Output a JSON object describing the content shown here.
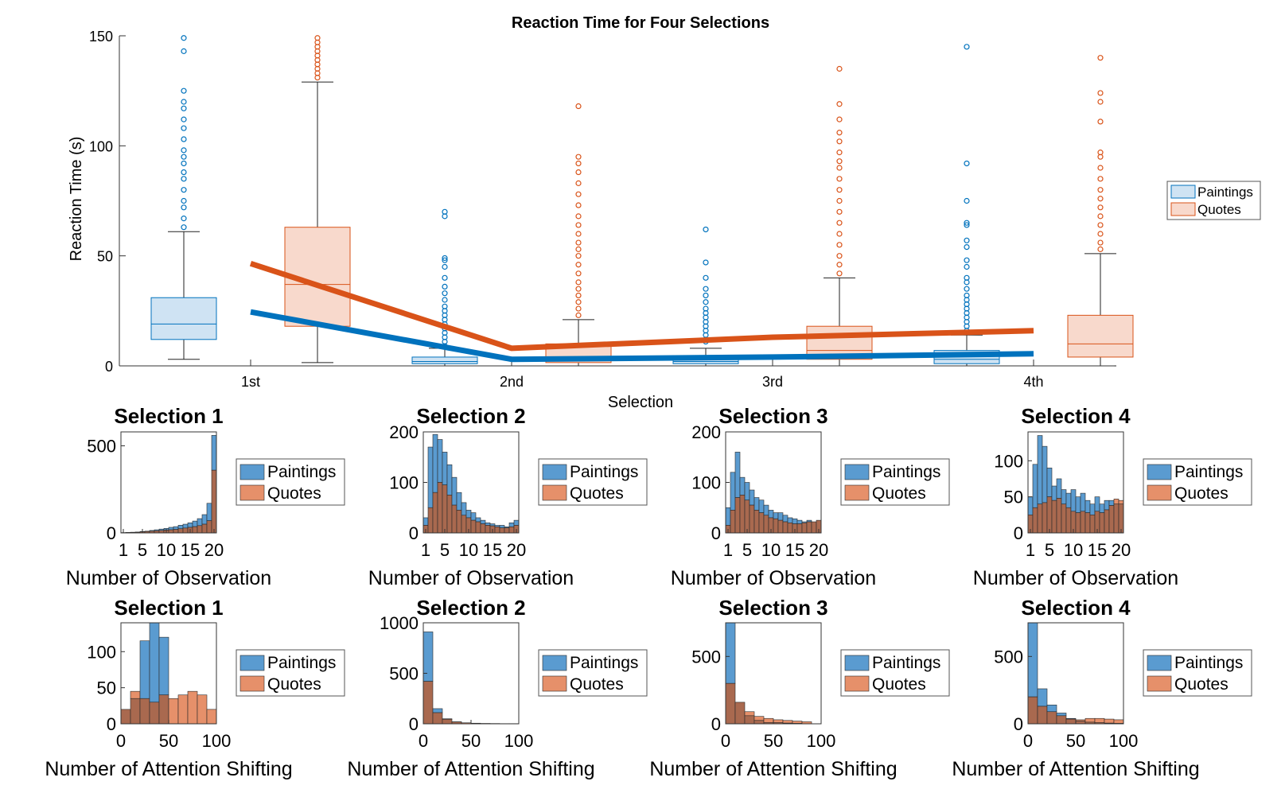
{
  "colors": {
    "paintings_fill": "#cfe3f3",
    "paintings_edge": "#0072bd",
    "quotes_fill": "#f8d9cc",
    "quotes_edge": "#d95319",
    "hist_paintings": "#5a9bd0",
    "hist_quotes": "#e6906a",
    "hist_overlap": "#a9694f",
    "hist_edge": "#2a2a2a"
  },
  "chart_data": [
    {
      "type": "box",
      "title": "Reaction Time for Four Selections",
      "xlabel": "Selection",
      "ylabel": "Reaction Time (s)",
      "categories": [
        "1st",
        "2nd",
        "3rd",
        "4th"
      ],
      "ylim": [
        0,
        150
      ],
      "yticks": [
        "0",
        "50",
        "100",
        "150"
      ],
      "legend": {
        "placement": "right",
        "entries": [
          "Paintings",
          "Quotes"
        ]
      },
      "series": [
        {
          "name": "Paintings",
          "boxes": [
            {
              "whisker_low": 3,
              "q1": 12,
              "median": 19,
              "q3": 31,
              "whisker_high": 61,
              "outliers": [
                63,
                67,
                72,
                75,
                80,
                85,
                88,
                92,
                95,
                98,
                103,
                108,
                112,
                117,
                120,
                125,
                143,
                149
              ]
            },
            {
              "whisker_low": 0,
              "q1": 1,
              "median": 2,
              "q3": 4,
              "whisker_high": 8,
              "outliers": [
                9,
                11,
                13,
                15,
                17,
                19,
                21,
                23,
                25,
                27,
                30,
                33,
                36,
                40,
                45,
                48,
                49,
                68,
                70
              ]
            },
            {
              "whisker_low": 0,
              "q1": 1,
              "median": 2,
              "q3": 4,
              "whisker_high": 8,
              "outliers": [
                11,
                12,
                14,
                16,
                18,
                20,
                22,
                24,
                26,
                29,
                32,
                35,
                40,
                47,
                62
              ]
            },
            {
              "whisker_low": 0,
              "q1": 1,
              "median": 3,
              "q3": 7,
              "whisker_high": 14,
              "outliers": [
                16,
                18,
                20,
                22,
                24,
                26,
                28,
                30,
                32,
                35,
                38,
                40,
                45,
                48,
                54,
                57,
                64,
                65,
                75,
                92,
                145
              ]
            }
          ],
          "mean_line": [
            24.5,
            3,
            4,
            5.5
          ]
        },
        {
          "name": "Quotes",
          "boxes": [
            {
              "whisker_low": 1.5,
              "q1": 18,
              "median": 37,
              "q3": 63,
              "whisker_high": 129,
              "outliers": [
                131,
                133,
                135,
                137,
                139,
                141,
                143,
                145,
                147,
                149
              ]
            },
            {
              "whisker_low": 0,
              "q1": 1.5,
              "median": 4,
              "q3": 10,
              "whisker_high": 21,
              "outliers": [
                23,
                26,
                29,
                32,
                35,
                38,
                42,
                46,
                50,
                53,
                56,
                60,
                64,
                68,
                73,
                78,
                83,
                88,
                92,
                95,
                118
              ]
            },
            {
              "whisker_low": 0,
              "q1": 3,
              "median": 7,
              "q3": 18,
              "whisker_high": 40,
              "outliers": [
                42,
                46,
                50,
                55,
                60,
                65,
                70,
                75,
                80,
                85,
                90,
                93,
                97,
                102,
                106,
                112,
                119,
                135
              ]
            },
            {
              "whisker_low": 0,
              "q1": 4,
              "median": 10,
              "q3": 23,
              "whisker_high": 51,
              "outliers": [
                53,
                56,
                60,
                64,
                68,
                72,
                76,
                80,
                85,
                90,
                95,
                97,
                111,
                120,
                124,
                140
              ]
            }
          ],
          "mean_line": [
            46.5,
            8,
            13,
            16
          ]
        }
      ]
    },
    {
      "type": "histogram",
      "title": "Selection 1",
      "xlabel": "Number of Observation",
      "xticks": [
        "1",
        "5",
        "10",
        "15",
        "20"
      ],
      "xlim": [
        0.5,
        20.5
      ],
      "ylim": [
        0,
        580
      ],
      "yticks": [
        "0",
        "500"
      ],
      "legend": {
        "placement": "right",
        "entries": [
          "Paintings",
          "Quotes"
        ]
      },
      "bins": [
        1,
        2,
        3,
        4,
        5,
        6,
        7,
        8,
        9,
        10,
        11,
        12,
        13,
        14,
        15,
        16,
        17,
        18,
        19,
        20
      ],
      "series": [
        {
          "name": "Paintings",
          "values": [
            2,
            3,
            4,
            5,
            8,
            10,
            14,
            18,
            22,
            26,
            32,
            36,
            44,
            50,
            58,
            68,
            82,
            105,
            170,
            560
          ]
        },
        {
          "name": "Quotes",
          "values": [
            1,
            2,
            3,
            4,
            6,
            8,
            10,
            12,
            14,
            16,
            18,
            20,
            24,
            28,
            32,
            36,
            42,
            50,
            70,
            360
          ]
        }
      ]
    },
    {
      "type": "histogram",
      "title": "Selection 2",
      "xlabel": "Number of Observation",
      "xticks": [
        "1",
        "5",
        "10",
        "15",
        "20"
      ],
      "xlim": [
        0.5,
        20.5
      ],
      "ylim": [
        0,
        200
      ],
      "yticks": [
        "0",
        "100",
        "200"
      ],
      "legend": {
        "placement": "right",
        "entries": [
          "Paintings",
          "Quotes"
        ]
      },
      "bins": [
        1,
        2,
        3,
        4,
        5,
        6,
        7,
        8,
        9,
        10,
        11,
        12,
        13,
        14,
        15,
        16,
        17,
        18,
        19,
        20
      ],
      "series": [
        {
          "name": "Paintings",
          "values": [
            30,
            170,
            195,
            185,
            160,
            135,
            110,
            80,
            60,
            45,
            40,
            30,
            25,
            20,
            18,
            15,
            15,
            12,
            20,
            25
          ]
        },
        {
          "name": "Quotes",
          "values": [
            15,
            50,
            80,
            100,
            95,
            75,
            55,
            45,
            35,
            30,
            25,
            22,
            18,
            15,
            14,
            12,
            10,
            10,
            12,
            15
          ]
        }
      ]
    },
    {
      "type": "histogram",
      "title": "Selection 3",
      "xlabel": "Number of Observation",
      "xticks": [
        "1",
        "5",
        "10",
        "15",
        "20"
      ],
      "xlim": [
        0.5,
        20.5
      ],
      "ylim": [
        0,
        200
      ],
      "yticks": [
        "0",
        "100",
        "200"
      ],
      "legend": {
        "placement": "right",
        "entries": [
          "Paintings",
          "Quotes"
        ]
      },
      "bins": [
        1,
        2,
        3,
        4,
        5,
        6,
        7,
        8,
        9,
        10,
        11,
        12,
        13,
        14,
        15,
        16,
        17,
        18,
        19,
        20
      ],
      "series": [
        {
          "name": "Paintings",
          "values": [
            50,
            120,
            160,
            110,
            100,
            85,
            70,
            65,
            55,
            45,
            40,
            40,
            35,
            30,
            28,
            25,
            22,
            25,
            22,
            25
          ]
        },
        {
          "name": "Quotes",
          "values": [
            15,
            45,
            70,
            75,
            65,
            55,
            45,
            40,
            35,
            30,
            28,
            25,
            22,
            20,
            18,
            18,
            20,
            22,
            22,
            25
          ]
        }
      ]
    },
    {
      "type": "histogram",
      "title": "Selection 4",
      "xlabel": "Number of Observation",
      "xticks": [
        "1",
        "5",
        "10",
        "15",
        "20"
      ],
      "xlim": [
        0.5,
        20.5
      ],
      "ylim": [
        0,
        140
      ],
      "yticks": [
        "0",
        "50",
        "100"
      ],
      "legend": {
        "placement": "right",
        "entries": [
          "Paintings",
          "Quotes"
        ]
      },
      "bins": [
        1,
        2,
        3,
        4,
        5,
        6,
        7,
        8,
        9,
        10,
        11,
        12,
        13,
        14,
        15,
        16,
        17,
        18,
        19,
        20
      ],
      "series": [
        {
          "name": "Paintings",
          "values": [
            50,
            95,
            135,
            120,
            90,
            65,
            75,
            60,
            55,
            60,
            50,
            55,
            45,
            40,
            50,
            40,
            45,
            45,
            40,
            40
          ]
        },
        {
          "name": "Quotes",
          "values": [
            25,
            35,
            40,
            42,
            50,
            45,
            48,
            40,
            35,
            30,
            28,
            30,
            28,
            25,
            30,
            28,
            32,
            38,
            47,
            45
          ]
        }
      ]
    },
    {
      "type": "histogram",
      "title": "Selection 1",
      "xlabel": "Number of Attention Shifting",
      "xticks": [
        "0",
        "50",
        "100"
      ],
      "xtick_values": [
        0,
        50,
        100
      ],
      "xlim": [
        0,
        100
      ],
      "ylim": [
        0,
        140
      ],
      "yticks": [
        "0",
        "50",
        "100"
      ],
      "legend": {
        "placement": "right",
        "entries": [
          "Paintings",
          "Quotes"
        ]
      },
      "bin_edges": [
        0,
        10,
        20,
        30,
        40,
        50,
        60,
        70,
        80,
        90,
        100
      ],
      "series": [
        {
          "name": "Paintings",
          "values": [
            20,
            35,
            115,
            140,
            120,
            0,
            0,
            0,
            0,
            0
          ]
        },
        {
          "name": "Quotes",
          "values": [
            20,
            45,
            35,
            30,
            40,
            35,
            40,
            45,
            40,
            20
          ]
        }
      ]
    },
    {
      "type": "histogram",
      "title": "Selection 2",
      "xlabel": "Number of Attention Shifting",
      "xticks": [
        "0",
        "50",
        "100"
      ],
      "xtick_values": [
        0,
        50,
        100
      ],
      "xlim": [
        0,
        100
      ],
      "ylim": [
        0,
        1000
      ],
      "yticks": [
        "0",
        "500",
        "1000"
      ],
      "legend": {
        "placement": "right",
        "entries": [
          "Paintings",
          "Quotes"
        ]
      },
      "bin_edges": [
        0,
        10,
        20,
        30,
        40,
        50,
        60,
        70,
        80,
        90,
        100
      ],
      "series": [
        {
          "name": "Paintings",
          "values": [
            910,
            150,
            50,
            20,
            10,
            6,
            4,
            3,
            2,
            2
          ]
        },
        {
          "name": "Quotes",
          "values": [
            420,
            110,
            45,
            18,
            10,
            6,
            4,
            3,
            2,
            2
          ]
        }
      ]
    },
    {
      "type": "histogram",
      "title": "Selection 3",
      "xlabel": "Number of Attention Shifting",
      "xticks": [
        "0",
        "50",
        "100"
      ],
      "xtick_values": [
        0,
        50,
        100
      ],
      "xlim": [
        0,
        100
      ],
      "ylim": [
        0,
        750
      ],
      "yticks": [
        "0",
        "500"
      ],
      "legend": {
        "placement": "right",
        "entries": [
          "Paintings",
          "Quotes"
        ]
      },
      "bin_edges": [
        0,
        10,
        20,
        30,
        40,
        50,
        60,
        70,
        80,
        90,
        100
      ],
      "series": [
        {
          "name": "Paintings",
          "values": [
            750,
            160,
            60,
            25,
            10,
            8,
            5,
            3,
            0,
            0
          ]
        },
        {
          "name": "Quotes",
          "values": [
            300,
            160,
            90,
            55,
            40,
            30,
            25,
            20,
            15,
            0
          ]
        }
      ]
    },
    {
      "type": "histogram",
      "title": "Selection 4",
      "xlabel": "Number of Attention Shifting",
      "xticks": [
        "0",
        "50",
        "100"
      ],
      "xtick_values": [
        0,
        50,
        100
      ],
      "xlim": [
        0,
        100
      ],
      "ylim": [
        0,
        750
      ],
      "yticks": [
        "0",
        "500"
      ],
      "legend": {
        "placement": "right",
        "entries": [
          "Paintings",
          "Quotes"
        ]
      },
      "bin_edges": [
        0,
        10,
        20,
        30,
        40,
        50,
        60,
        70,
        80,
        90,
        100
      ],
      "series": [
        {
          "name": "Paintings",
          "values": [
            750,
            260,
            140,
            80,
            40,
            20,
            12,
            8,
            5,
            3
          ]
        },
        {
          "name": "Quotes",
          "values": [
            200,
            130,
            90,
            60,
            35,
            30,
            40,
            40,
            35,
            30
          ]
        }
      ]
    }
  ]
}
